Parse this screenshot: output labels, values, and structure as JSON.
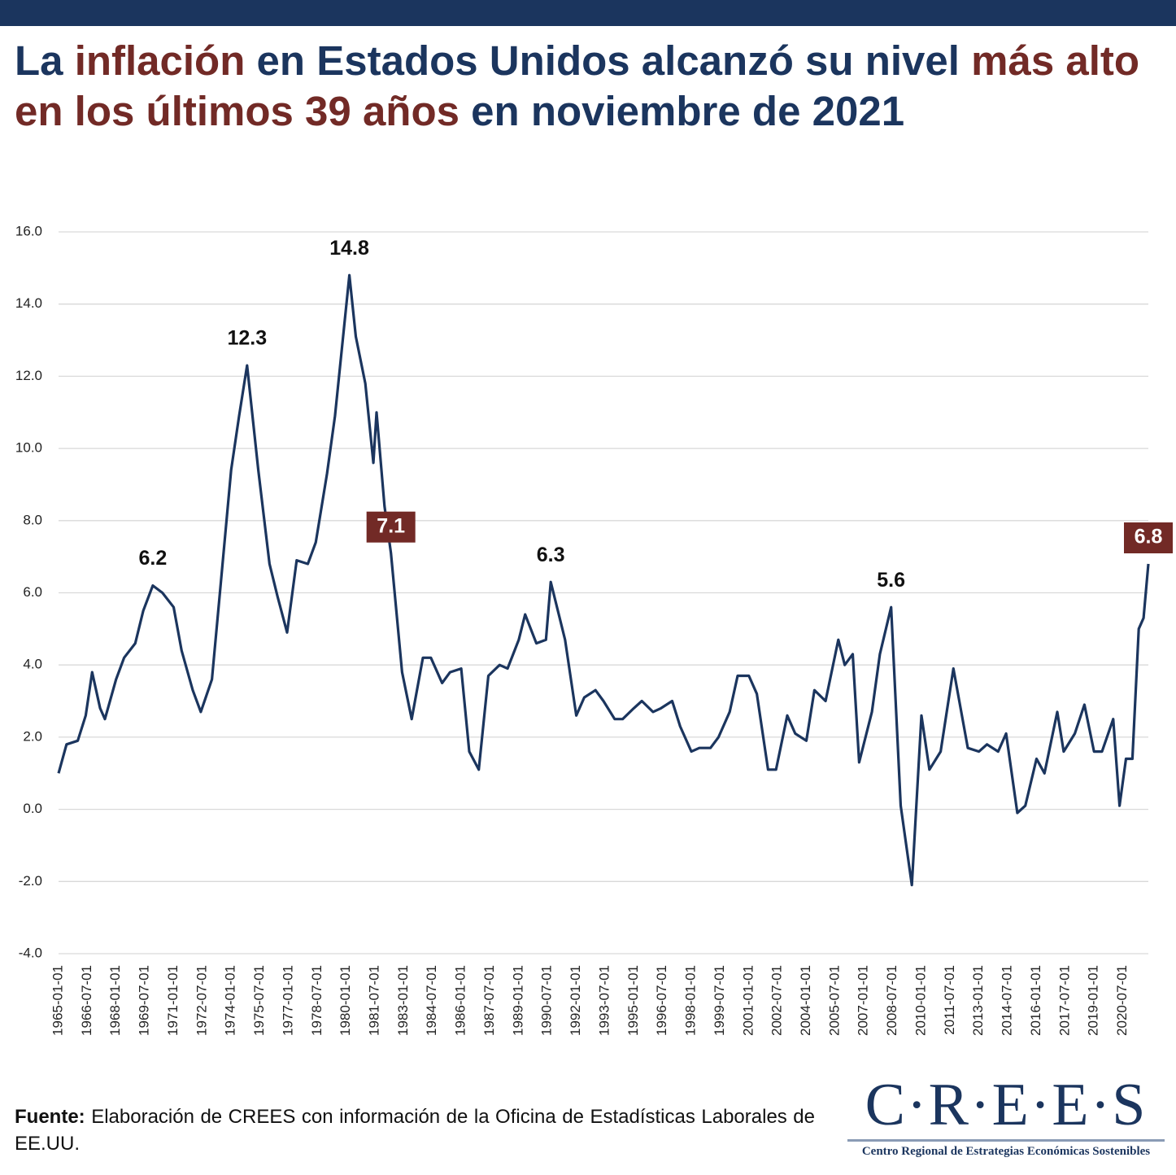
{
  "chart_data": {
    "type": "line",
    "title": [
      "La ",
      "inflación",
      " en Estados Unidos alcanzó su nivel ",
      "más alto en los últimos 39 años",
      " en noviembre de 2021"
    ],
    "title_colors": [
      "#1b355e",
      "#722a26",
      "#1b355e",
      "#722a26",
      "#1b355e"
    ],
    "color": "#1b355e",
    "x": [
      "1965-01-01",
      "1965-06-01",
      "1966-01-01",
      "1966-06-01",
      "1966-10-01",
      "1967-03-01",
      "1967-06-01",
      "1968-01-01",
      "1968-06-01",
      "1969-01-01",
      "1969-06-01",
      "1969-12-01",
      "1970-06-01",
      "1971-01-01",
      "1971-06-01",
      "1972-01-01",
      "1972-06-01",
      "1973-01-01",
      "1973-06-01",
      "1974-01-01",
      "1974-06-01",
      "1974-11-01",
      "1975-06-01",
      "1976-01-01",
      "1976-06-01",
      "1976-12-01",
      "1977-06-01",
      "1978-01-01",
      "1978-06-01",
      "1979-01-01",
      "1979-06-01",
      "1980-03-01",
      "1980-07-01",
      "1981-01-01",
      "1981-06-01",
      "1981-08-01",
      "1982-01-01",
      "1982-05-01",
      "1982-12-01",
      "1983-06-01",
      "1984-01-01",
      "1984-06-01",
      "1985-01-01",
      "1985-06-01",
      "1986-01-01",
      "1986-06-01",
      "1986-12-01",
      "1987-06-01",
      "1988-01-01",
      "1988-06-01",
      "1989-01-01",
      "1989-05-01",
      "1989-12-01",
      "1990-06-01",
      "1990-09-01",
      "1991-06-01",
      "1992-01-01",
      "1992-06-01",
      "1993-01-01",
      "1993-06-01",
      "1994-01-01",
      "1994-06-01",
      "1995-01-01",
      "1995-06-01",
      "1996-01-01",
      "1996-06-01",
      "1997-01-01",
      "1997-06-01",
      "1998-01-01",
      "1998-06-01",
      "1999-01-01",
      "1999-06-01",
      "2000-01-01",
      "2000-06-01",
      "2001-01-01",
      "2001-06-01",
      "2002-01-01",
      "2002-06-01",
      "2003-01-01",
      "2003-06-01",
      "2004-01-01",
      "2004-06-01",
      "2005-01-01",
      "2005-09-01",
      "2006-01-01",
      "2006-06-01",
      "2006-10-01",
      "2007-06-01",
      "2007-11-01",
      "2008-06-01",
      "2008-12-01",
      "2009-07-01",
      "2010-01-01",
      "2010-06-01",
      "2011-01-01",
      "2011-09-01",
      "2012-06-01",
      "2013-01-01",
      "2013-06-01",
      "2014-01-01",
      "2014-06-01",
      "2015-01-01",
      "2015-06-01",
      "2016-01-01",
      "2016-06-01",
      "2017-02-01",
      "2017-06-01",
      "2018-01-01",
      "2018-07-01",
      "2019-01-01",
      "2019-06-01",
      "2020-01-01",
      "2020-05-01",
      "2020-09-01",
      "2021-01-01",
      "2021-05-01",
      "2021-08-01",
      "2021-11-01"
    ],
    "values": [
      1.0,
      1.8,
      1.9,
      2.6,
      3.8,
      2.8,
      2.5,
      3.6,
      4.2,
      4.6,
      5.5,
      6.2,
      6.0,
      5.6,
      4.4,
      3.3,
      2.7,
      3.6,
      6.0,
      9.4,
      10.9,
      12.3,
      9.4,
      6.8,
      5.9,
      4.9,
      6.9,
      6.8,
      7.4,
      9.3,
      10.9,
      14.8,
      13.1,
      11.8,
      9.6,
      11.0,
      8.4,
      7.1,
      3.8,
      2.5,
      4.2,
      4.2,
      3.5,
      3.8,
      3.9,
      1.6,
      1.1,
      3.7,
      4.0,
      3.9,
      4.7,
      5.4,
      4.6,
      4.7,
      6.3,
      4.7,
      2.6,
      3.1,
      3.3,
      3.0,
      2.5,
      2.5,
      2.8,
      3.0,
      2.7,
      2.8,
      3.0,
      2.3,
      1.6,
      1.7,
      1.7,
      2.0,
      2.7,
      3.7,
      3.7,
      3.2,
      1.1,
      1.1,
      2.6,
      2.1,
      1.9,
      3.3,
      3.0,
      4.7,
      4.0,
      4.3,
      1.3,
      2.7,
      4.3,
      5.6,
      0.1,
      -2.1,
      2.6,
      1.1,
      1.6,
      3.9,
      1.7,
      1.6,
      1.8,
      1.6,
      2.1,
      -0.1,
      0.1,
      1.4,
      1.0,
      2.7,
      1.6,
      2.1,
      2.9,
      1.6,
      1.6,
      2.5,
      0.1,
      1.4,
      1.4,
      5.0,
      5.3,
      6.8
    ],
    "xlim": [
      "1965-01-01",
      "2021-11-01"
    ],
    "xticks": [
      "1965-01-01",
      "1966-07-01",
      "1968-01-01",
      "1969-07-01",
      "1971-01-01",
      "1972-07-01",
      "1974-01-01",
      "1975-07-01",
      "1977-01-01",
      "1978-07-01",
      "1980-01-01",
      "1981-07-01",
      "1983-01-01",
      "1984-07-01",
      "1986-01-01",
      "1987-07-01",
      "1989-01-01",
      "1990-07-01",
      "1992-01-01",
      "1993-07-01",
      "1995-01-01",
      "1996-07-01",
      "1998-01-01",
      "1999-07-01",
      "2001-01-01",
      "2002-07-01",
      "2004-01-01",
      "2005-07-01",
      "2007-01-01",
      "2008-07-01",
      "2010-01-01",
      "2011-07-01",
      "2013-01-01",
      "2014-07-01",
      "2016-01-01",
      "2017-07-01",
      "2019-01-01",
      "2020-07-01"
    ],
    "ylim": [
      -4,
      16
    ],
    "yticks": [
      {
        "value": -4,
        "label": "-4.0"
      },
      {
        "value": -2,
        "label": "-2.0"
      },
      {
        "value": 0,
        "label": "0.0"
      },
      {
        "value": 2,
        "label": "2.0"
      },
      {
        "value": 4,
        "label": "4.0"
      },
      {
        "value": 6,
        "label": "6.0"
      },
      {
        "value": 8,
        "label": "8.0"
      },
      {
        "value": 10,
        "label": "10.0"
      },
      {
        "value": 12,
        "label": "12.0"
      },
      {
        "value": 14,
        "label": "14.0"
      },
      {
        "value": 16,
        "label": "16.0"
      }
    ],
    "grid": true,
    "annotations": [
      {
        "x": "1969-12-01",
        "y": 6.2,
        "boxed": false
      },
      {
        "x": "1974-11-01",
        "y": 12.3,
        "boxed": false
      },
      {
        "x": "1980-03-01",
        "y": 14.8,
        "boxed": false
      },
      {
        "x": "1982-05-01",
        "y": 7.1,
        "boxed": true
      },
      {
        "x": "1990-09-01",
        "y": 6.3,
        "boxed": false
      },
      {
        "x": "2008-06-01",
        "y": 5.6,
        "boxed": false
      },
      {
        "x": "2021-11-01",
        "y": 6.8,
        "boxed": true
      }
    ],
    "box_color": "#722a26"
  },
  "source": {
    "label": "Fuente:",
    "text": " Elaboración de CREES con información de la Oficina de Estadísticas Laborales de EE.UU."
  },
  "logo": {
    "name": "C·R·E·E·S",
    "subtitle": "Centro Regional de Estrategias Económicas Sostenibles"
  }
}
